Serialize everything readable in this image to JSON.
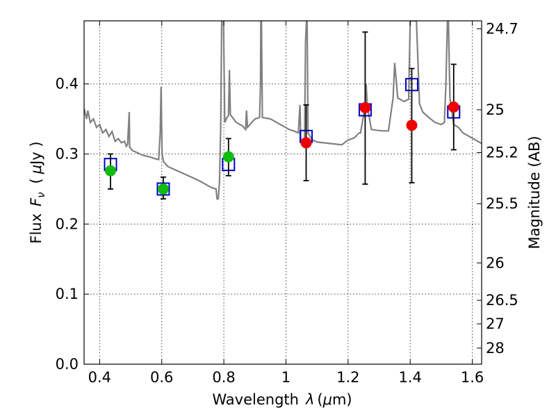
{
  "chart_data": {
    "type": "scatter",
    "xlabel_main": "Wavelength",
    "xlabel_symbol": "λ",
    "xlabel_unit_open": "(",
    "xlabel_unit_mu": "μ",
    "xlabel_unit_close": "m)",
    "ylabel_main": "Flux",
    "ylabel_symbol": "F",
    "ylabel_sub": "ν",
    "ylabel_unit_open": "(",
    "ylabel_unit_mu": "μ",
    "ylabel_unit_close": "Jy )",
    "y2label": "Magnitude (AB)",
    "xlim": [
      0.35,
      1.63
    ],
    "ylim": [
      0.0,
      0.49
    ],
    "grid": true,
    "xticks": [
      {
        "value": 0.4,
        "label": "0.4"
      },
      {
        "value": 0.6,
        "label": "0.6"
      },
      {
        "value": 0.8,
        "label": "0.8"
      },
      {
        "value": 1.0,
        "label": "1"
      },
      {
        "value": 1.2,
        "label": "1.2"
      },
      {
        "value": 1.4,
        "label": "1.4"
      },
      {
        "value": 1.6,
        "label": "1.6"
      }
    ],
    "yticks": [
      {
        "value": 0.0,
        "label": "0.0"
      },
      {
        "value": 0.1,
        "label": "0.1"
      },
      {
        "value": 0.2,
        "label": "0.2"
      },
      {
        "value": 0.3,
        "label": "0.3"
      },
      {
        "value": 0.4,
        "label": "0.4"
      }
    ],
    "y2ticks": [
      {
        "mag": 24.7,
        "label": "24.7"
      },
      {
        "mag": 25.0,
        "label": "25"
      },
      {
        "mag": 25.2,
        "label": "25.2"
      },
      {
        "mag": 25.5,
        "label": "25.5"
      },
      {
        "mag": 26.0,
        "label": "26"
      },
      {
        "mag": 26.5,
        "label": "26.5"
      },
      {
        "mag": 27.0,
        "label": "27"
      },
      {
        "mag": 28.0,
        "label": "28"
      }
    ],
    "template_spectrum": {
      "color": "#808080",
      "points": [
        [
          0.35,
          0.365
        ],
        [
          0.358,
          0.35
        ],
        [
          0.362,
          0.362
        ],
        [
          0.37,
          0.345
        ],
        [
          0.38,
          0.35
        ],
        [
          0.39,
          0.338
        ],
        [
          0.4,
          0.342
        ],
        [
          0.41,
          0.33
        ],
        [
          0.42,
          0.335
        ],
        [
          0.43,
          0.325
        ],
        [
          0.44,
          0.332
        ],
        [
          0.45,
          0.318
        ],
        [
          0.46,
          0.322
        ],
        [
          0.47,
          0.316
        ],
        [
          0.48,
          0.318
        ],
        [
          0.486,
          0.311
        ],
        [
          0.49,
          0.314
        ],
        [
          0.4955,
          0.36
        ],
        [
          0.4965,
          0.31
        ],
        [
          0.505,
          0.305
        ],
        [
          0.52,
          0.302
        ],
        [
          0.54,
          0.298
        ],
        [
          0.56,
          0.296
        ],
        [
          0.58,
          0.293
        ],
        [
          0.59,
          0.292
        ],
        [
          0.595,
          0.33
        ],
        [
          0.598,
          0.396
        ],
        [
          0.601,
          0.3
        ],
        [
          0.606,
          0.289
        ],
        [
          0.62,
          0.282
        ],
        [
          0.64,
          0.278
        ],
        [
          0.655,
          0.275
        ],
        [
          0.68,
          0.27
        ],
        [
          0.7,
          0.266
        ],
        [
          0.72,
          0.262
        ],
        [
          0.74,
          0.257
        ],
        [
          0.76,
          0.252
        ],
        [
          0.775,
          0.25
        ],
        [
          0.778,
          0.236
        ],
        [
          0.782,
          0.236
        ],
        [
          0.786,
          0.26
        ],
        [
          0.79,
          0.34
        ],
        [
          0.793,
          0.49
        ],
        [
          0.799,
          0.49
        ],
        [
          0.803,
          0.345
        ],
        [
          0.81,
          0.352
        ],
        [
          0.815,
          0.355
        ],
        [
          0.818,
          0.42
        ],
        [
          0.821,
          0.356
        ],
        [
          0.84,
          0.345
        ],
        [
          0.86,
          0.34
        ],
        [
          0.87,
          0.335
        ],
        [
          0.873,
          0.362
        ],
        [
          0.876,
          0.338
        ],
        [
          0.9,
          0.35
        ],
        [
          0.915,
          0.352
        ],
        [
          0.918,
          0.4
        ],
        [
          0.919,
          0.49
        ],
        [
          0.921,
          0.49
        ],
        [
          0.924,
          0.352
        ],
        [
          0.95,
          0.35
        ],
        [
          0.97,
          0.345
        ],
        [
          0.99,
          0.34
        ],
        [
          1.01,
          0.335
        ],
        [
          1.03,
          0.332
        ],
        [
          1.04,
          0.33
        ],
        [
          1.045,
          0.37
        ],
        [
          1.048,
          0.32
        ],
        [
          1.06,
          0.322
        ],
        [
          1.063,
          0.46
        ],
        [
          1.066,
          0.49
        ],
        [
          1.068,
          0.49
        ],
        [
          1.071,
          0.33
        ],
        [
          1.085,
          0.32
        ],
        [
          1.1,
          0.317
        ],
        [
          1.12,
          0.316
        ],
        [
          1.14,
          0.315
        ],
        [
          1.16,
          0.314
        ],
        [
          1.18,
          0.313
        ],
        [
          1.2,
          0.32
        ],
        [
          1.22,
          0.323
        ],
        [
          1.235,
          0.33
        ],
        [
          1.24,
          0.33
        ],
        [
          1.255,
          0.368
        ],
        [
          1.258,
          0.4
        ],
        [
          1.262,
          0.368
        ],
        [
          1.275,
          0.335
        ],
        [
          1.29,
          0.334
        ],
        [
          1.31,
          0.333
        ],
        [
          1.33,
          0.333
        ],
        [
          1.345,
          0.38
        ],
        [
          1.35,
          0.43
        ],
        [
          1.36,
          0.38
        ],
        [
          1.38,
          0.375
        ],
        [
          1.395,
          0.378
        ],
        [
          1.4,
          0.49
        ],
        [
          1.42,
          0.49
        ],
        [
          1.43,
          0.372
        ],
        [
          1.44,
          0.36
        ],
        [
          1.46,
          0.352
        ],
        [
          1.48,
          0.345
        ],
        [
          1.5,
          0.342
        ],
        [
          1.51,
          0.345
        ],
        [
          1.515,
          0.4
        ],
        [
          1.52,
          0.49
        ],
        [
          1.523,
          0.49
        ],
        [
          1.528,
          0.38
        ],
        [
          1.54,
          0.342
        ],
        [
          1.555,
          0.338
        ],
        [
          1.57,
          0.33
        ],
        [
          1.59,
          0.325
        ],
        [
          1.61,
          0.32
        ],
        [
          1.63,
          0.315
        ]
      ]
    },
    "model_squares": {
      "color": "#0000cc",
      "points": [
        {
          "x": 0.435,
          "y": 0.285
        },
        {
          "x": 0.605,
          "y": 0.25
        },
        {
          "x": 0.815,
          "y": 0.285
        },
        {
          "x": 1.065,
          "y": 0.325
        },
        {
          "x": 1.255,
          "y": 0.363
        },
        {
          "x": 1.405,
          "y": 0.399
        },
        {
          "x": 1.54,
          "y": 0.36
        }
      ]
    },
    "measured_points": [
      {
        "x": 0.435,
        "y": 0.276,
        "yerr_low": 0.25,
        "yerr_high": 0.3,
        "color": "#11bb11"
      },
      {
        "x": 0.605,
        "y": 0.25,
        "yerr_low": 0.236,
        "yerr_high": 0.267,
        "color": "#11bb11"
      },
      {
        "x": 0.815,
        "y": 0.296,
        "yerr_low": 0.269,
        "yerr_high": 0.322,
        "color": "#11bb11"
      },
      {
        "x": 1.065,
        "y": 0.316,
        "yerr_low": 0.262,
        "yerr_high": 0.37,
        "color": "#ee0000"
      },
      {
        "x": 1.255,
        "y": 0.366,
        "yerr_low": 0.257,
        "yerr_high": 0.474,
        "color": "#ee0000"
      },
      {
        "x": 1.405,
        "y": 0.341,
        "yerr_low": 0.259,
        "yerr_high": 0.422,
        "color": "#ee0000"
      },
      {
        "x": 1.54,
        "y": 0.367,
        "yerr_low": 0.306,
        "yerr_high": 0.428,
        "color": "#ee0000"
      }
    ]
  }
}
